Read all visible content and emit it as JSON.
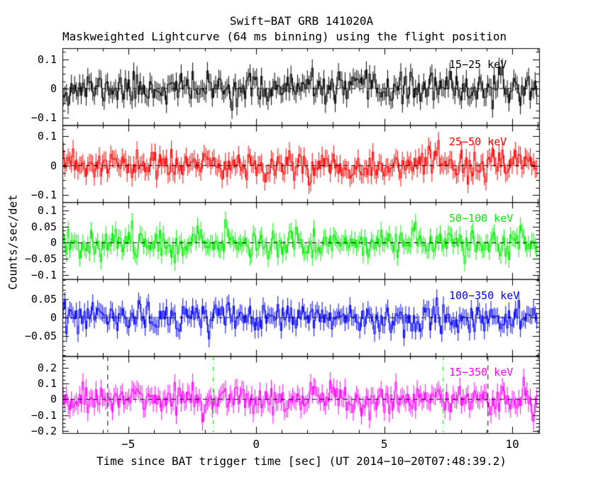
{
  "chart_data": {
    "type": "line",
    "title": "Swift−BAT GRB 141020A",
    "subtitle": "Maskweighted Lightcurve (64 ms binning) using the flight position",
    "xlabel": "Time since BAT trigger time [sec] (UT 2014−10−20T07:48:39.2)",
    "ylabel": "Counts/sec/det",
    "grid": false,
    "background": "#ffffff",
    "frame_color": "#000000",
    "x_range": [
      -7.57,
      11.05
    ],
    "bin_seconds": 0.064,
    "x_major_ticks": [
      -5,
      0,
      5,
      10
    ],
    "x_tick_labels": [
      "−5",
      "0",
      "5",
      "10"
    ],
    "x_minor_step": 1,
    "panels": [
      {
        "name": "15−25 keV",
        "color": "#000000",
        "ylim": [
          -0.125,
          0.138
        ],
        "yticks": [
          {
            "value": 0.1,
            "label": "0.1"
          },
          {
            "value": 0.0,
            "label": "0"
          },
          {
            "value": -0.1,
            "label": "−0.1"
          }
        ],
        "y_minor_step": 0.025,
        "noise_sigma": 0.026,
        "error_bar": 0.03,
        "seed": 11,
        "zero_line": true
      },
      {
        "name": "25−50 keV",
        "color": "#ff0000",
        "ylim": [
          -0.125,
          0.138
        ],
        "yticks": [
          {
            "value": 0.1,
            "label": "0.1"
          },
          {
            "value": 0.0,
            "label": "0"
          },
          {
            "value": -0.1,
            "label": "−0.1"
          }
        ],
        "y_minor_step": 0.025,
        "noise_sigma": 0.026,
        "error_bar": 0.03,
        "seed": 23,
        "zero_line": true
      },
      {
        "name": "50−100 keV",
        "color": "#00ee00",
        "ylim": [
          -0.112,
          0.125
        ],
        "yticks": [
          {
            "value": 0.1,
            "label": "0.1"
          },
          {
            "value": 0.05,
            "label": "0.05"
          },
          {
            "value": 0.0,
            "label": "0"
          },
          {
            "value": -0.05,
            "label": "−0.05"
          },
          {
            "value": -0.1,
            "label": "−0.1"
          }
        ],
        "y_minor_step": 0.0125,
        "noise_sigma": 0.023,
        "error_bar": 0.025,
        "seed": 37,
        "zero_line": true
      },
      {
        "name": "100−350 keV",
        "color": "#0000ff",
        "ylim": [
          -0.103,
          0.103
        ],
        "yticks": [
          {
            "value": 0.05,
            "label": "0.05"
          },
          {
            "value": 0.0,
            "label": "0"
          },
          {
            "value": -0.05,
            "label": "−0.05"
          }
        ],
        "y_minor_step": 0.0125,
        "noise_sigma": 0.02,
        "error_bar": 0.022,
        "seed": 53,
        "zero_line": true
      },
      {
        "name": "15−350 keV",
        "color": "#ff00ff",
        "ylim": [
          -0.215,
          0.275
        ],
        "yticks": [
          {
            "value": 0.2,
            "label": "0.2"
          },
          {
            "value": 0.1,
            "label": "0.1"
          },
          {
            "value": 0.0,
            "label": "0"
          },
          {
            "value": -0.1,
            "label": "−0.1"
          },
          {
            "value": -0.2,
            "label": "−0.2"
          }
        ],
        "y_minor_step": 0.025,
        "noise_sigma": 0.048,
        "error_bar": 0.055,
        "seed": 71,
        "zero_line": true
      }
    ],
    "vlines": [
      {
        "t": -5.8,
        "color": "#000000",
        "dash": "dashed",
        "panel_index": 4
      },
      {
        "t": 9.05,
        "color": "#000000",
        "dash": "dashed",
        "panel_index": 4
      },
      {
        "t": -1.68,
        "color": "#00dd00",
        "dash": "dash-dot",
        "panel_index": 4
      },
      {
        "t": 7.3,
        "color": "#00dd00",
        "dash": "dash-dot",
        "panel_index": 4
      }
    ],
    "data_note": "Mask-weighted rates are zero-mean noise (no detected burst emission in window); each series is 64 ms binned gaussian scatter of the given sigma with per-bin error bars."
  }
}
